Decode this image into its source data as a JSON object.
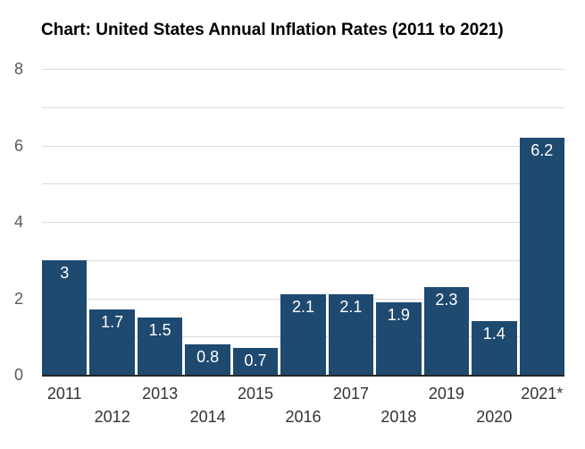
{
  "title": "Chart: United States Annual Inflation Rates (2011 to 2021)",
  "chart_data": {
    "type": "bar",
    "title": "Chart: United States Annual Inflation Rates (2011 to 2021)",
    "categories": [
      "2011",
      "2012",
      "2013",
      "2014",
      "2015",
      "2016",
      "2017",
      "2018",
      "2019",
      "2020",
      "2021*"
    ],
    "values": [
      3,
      1.7,
      1.5,
      0.8,
      0.7,
      2.1,
      2.1,
      1.9,
      2.3,
      1.4,
      6.2
    ],
    "value_labels": [
      "3",
      "1.7",
      "1.5",
      "0.8",
      "0.7",
      "2.1",
      "2.1",
      "1.9",
      "2.3",
      "1.4",
      "6.2"
    ],
    "xlabel": "",
    "ylabel": "",
    "ylim": [
      0,
      8
    ],
    "ytick_labels": [
      "0",
      "2",
      "4",
      "6",
      "8"
    ],
    "yticks": [
      0,
      2,
      4,
      6,
      8
    ],
    "gridline_step": 1,
    "grid": true,
    "legend": false,
    "x_labels_staggered": true,
    "colors": {
      "bar": "#1f4a70",
      "bar_value_label": "#ffffff",
      "axis_line": "#262626",
      "gridline": "#d9d9d9",
      "y_tick_label": "#595959",
      "x_tick_label": "#333333",
      "title": "#000000",
      "background": "#ffffff"
    }
  }
}
